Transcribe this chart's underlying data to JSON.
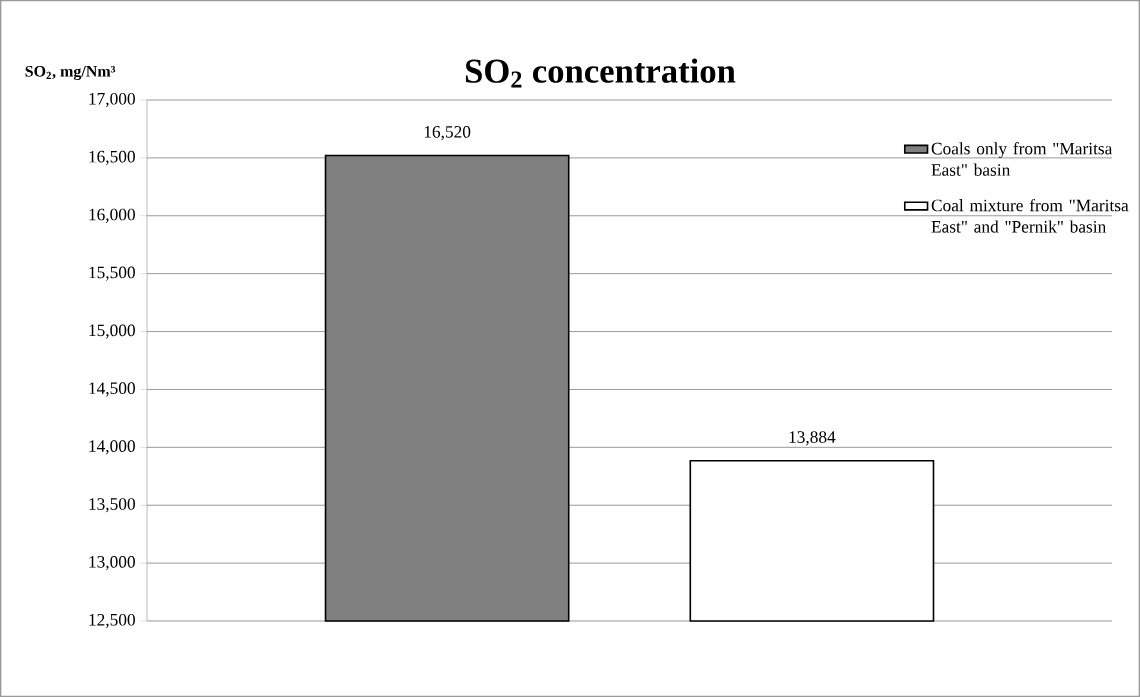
{
  "chart_data": {
    "type": "bar",
    "title": "SO$_{2}$ concentration",
    "ylabel": "SO$_{2}$, mg/Nm³",
    "categories": [
      null
    ],
    "series": [
      {
        "name": "Coals only from \"Maritsa East\" basin",
        "color": "#808080",
        "values": [
          16520
        ],
        "value_labels": [
          "16,520"
        ]
      },
      {
        "name": "Coal mixture from \"Maritsa East\" and \"Pernik\" basin",
        "color": "#ffffff",
        "values": [
          13884
        ],
        "value_labels": [
          "13,884"
        ]
      }
    ],
    "ylim": [
      12500,
      17000
    ],
    "yticks": [
      {
        "value": 12500,
        "label": "12,500"
      },
      {
        "value": 13000,
        "label": "13,000"
      },
      {
        "value": 13500,
        "label": "13,500"
      },
      {
        "value": 14000,
        "label": "14,000"
      },
      {
        "value": 14500,
        "label": "14,500"
      },
      {
        "value": 15000,
        "label": "15,000"
      },
      {
        "value": 15500,
        "label": "15,500"
      },
      {
        "value": 16000,
        "label": "16,000"
      },
      {
        "value": 16500,
        "label": "16,500"
      },
      {
        "value": 17000,
        "label": "17,000"
      }
    ],
    "grid": "y",
    "legend": "top right"
  }
}
